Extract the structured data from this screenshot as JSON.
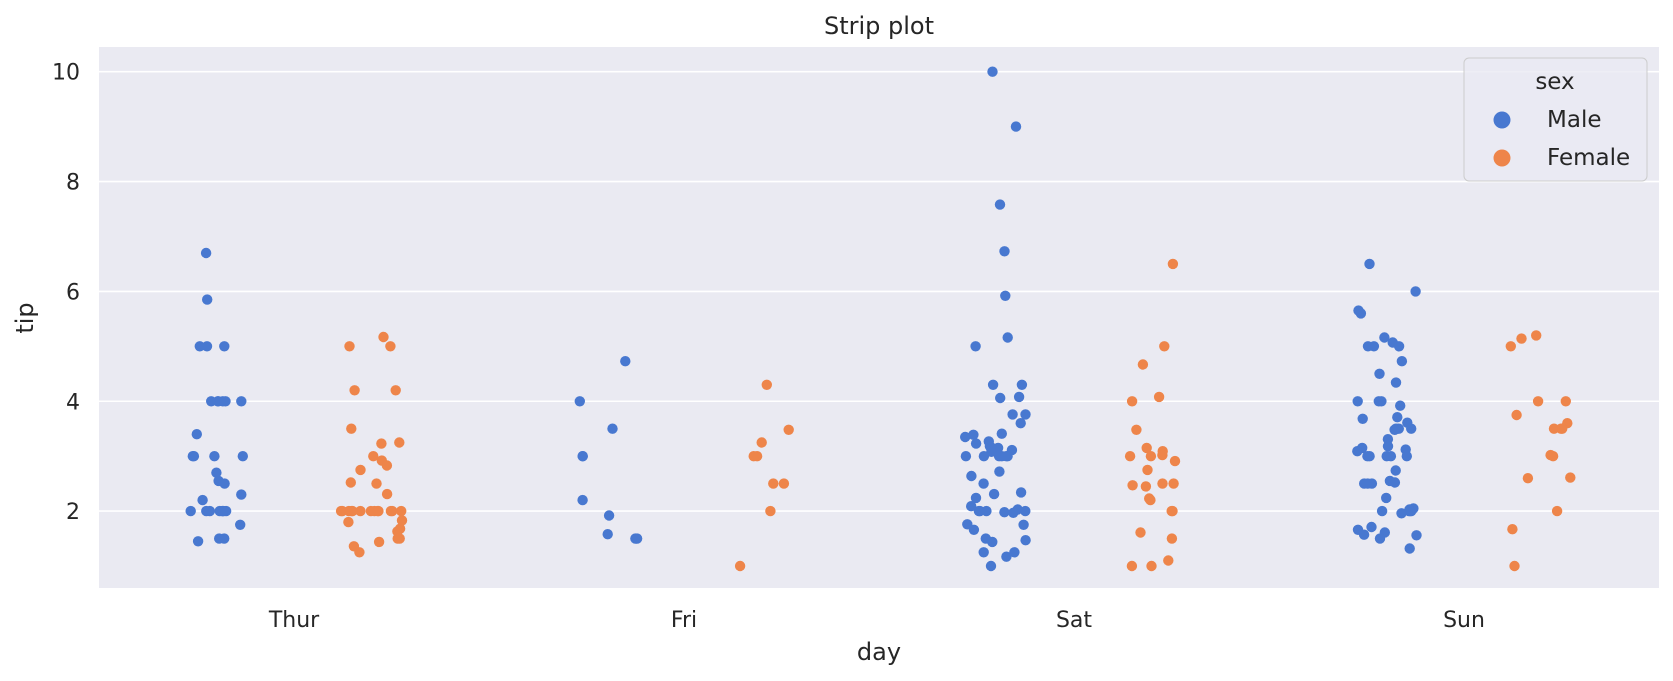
{
  "chart_data": {
    "type": "scatter",
    "title": "Strip plot",
    "xlabel": "day",
    "ylabel": "tip",
    "categories": [
      "Thur",
      "Fri",
      "Sat",
      "Sun"
    ],
    "ylim": [
      0.6,
      10.45
    ],
    "yticks": [
      2,
      4,
      6,
      8,
      10
    ],
    "grid": true,
    "legend": {
      "title": "sex",
      "placement": "top-right",
      "entries": [
        "Male",
        "Female"
      ]
    },
    "series": [
      {
        "name": "Male",
        "color": "#4878d0",
        "points": {
          "Thur": [
            4.0,
            4.0,
            4.0,
            4.0,
            4.0,
            4.0,
            5.0,
            5.0,
            5.0,
            3.4,
            3.0,
            3.0,
            3.0,
            3.0,
            2.7,
            2.5,
            2.55,
            2.3,
            2.2,
            2.0,
            2.0,
            2.0,
            2.0,
            2.0,
            2.0,
            2.0,
            2.0,
            1.75,
            1.5,
            1.45,
            1.5,
            5.85,
            6.7
          ],
          "Fri": [
            3.0,
            3.0,
            2.2,
            1.92,
            1.5,
            1.5,
            1.58,
            4.0,
            3.5,
            4.73
          ],
          "Sat": [
            10.0,
            9.0,
            7.58,
            6.73,
            5.92,
            5.16,
            5.0,
            4.3,
            4.3,
            4.08,
            4.06,
            3.76,
            3.76,
            3.6,
            3.39,
            3.41,
            3.35,
            3.27,
            3.23,
            3.18,
            3.16,
            3.15,
            3.11,
            3.08,
            3.0,
            3.0,
            3.0,
            3.0,
            3.0,
            3.0,
            2.72,
            2.64,
            2.5,
            2.34,
            2.31,
            2.24,
            2.09,
            2.03,
            2.0,
            2.0,
            2.0,
            2.0,
            1.98,
            1.97,
            1.76,
            1.75,
            1.66,
            1.5,
            1.47,
            1.44,
            1.25,
            1.25,
            1.17,
            1.0
          ],
          "Sun": [
            6.5,
            6.0,
            5.65,
            5.6,
            5.16,
            5.07,
            5.0,
            5.0,
            5.0,
            4.5,
            4.34,
            4.0,
            4.0,
            4.0,
            3.92,
            3.71,
            3.68,
            3.61,
            3.5,
            3.5,
            3.5,
            3.48,
            3.31,
            3.18,
            3.15,
            3.12,
            3.09,
            3.0,
            3.0,
            3.0,
            3.0,
            3.0,
            2.74,
            2.55,
            2.52,
            2.5,
            2.5,
            2.5,
            2.24,
            2.05,
            2.03,
            2.0,
            2.0,
            2.0,
            2.0,
            1.96,
            1.71,
            1.66,
            1.61,
            1.57,
            1.56,
            1.5,
            1.32,
            4.73
          ]
        }
      },
      {
        "name": "Female",
        "color": "#ee854a",
        "points": {
          "Thur": [
            5.0,
            5.0,
            5.17,
            4.2,
            4.2,
            3.5,
            3.25,
            3.23,
            2.92,
            3.0,
            2.83,
            2.75,
            2.5,
            2.52,
            2.31,
            2.0,
            2.0,
            2.0,
            2.0,
            2.0,
            2.0,
            2.0,
            2.0,
            2.0,
            2.0,
            2.0,
            2.0,
            2.0,
            1.83,
            1.8,
            1.68,
            1.63,
            1.5,
            1.5,
            1.44,
            1.36,
            1.25
          ],
          "Fri": [
            4.3,
            3.48,
            3.25,
            3.0,
            3.0,
            2.5,
            2.5,
            2.0,
            1.0
          ],
          "Sat": [
            6.5,
            5.0,
            4.67,
            4.08,
            4.0,
            3.48,
            3.15,
            3.09,
            3.02,
            3.0,
            3.0,
            2.91,
            2.75,
            2.5,
            2.5,
            2.47,
            2.45,
            2.23,
            2.2,
            2.0,
            2.0,
            1.61,
            1.5,
            1.1,
            1.0,
            1.0
          ],
          "Sun": [
            5.2,
            5.14,
            5.0,
            4.0,
            4.0,
            3.75,
            3.6,
            3.5,
            3.5,
            3.5,
            3.02,
            3.0,
            2.6,
            2.61,
            2.0,
            1.67,
            1.0
          ]
        }
      }
    ]
  }
}
